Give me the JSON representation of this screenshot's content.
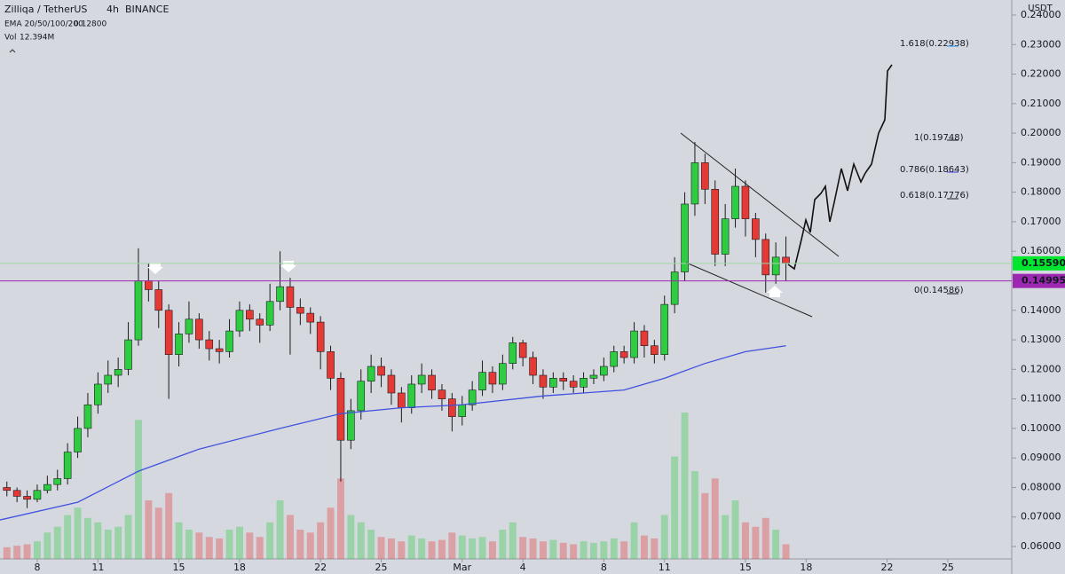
{
  "chart_data": {
    "type": "candlestick",
    "symbol": "Zilliqa / TetherUS",
    "interval": "4h",
    "exchange": "BINANCE",
    "ema_label": "EMA 20/50/100/200",
    "ema_value": "0.12800",
    "volume_label": "Vol",
    "volume_value": "12.394M",
    "currency": "USDT",
    "xlim": [
      6.16,
      56.16
    ],
    "ylim": [
      0.0558,
      0.2451
    ],
    "xticks": [
      8,
      11,
      15,
      18,
      22,
      25,
      {
        "value": 29,
        "label": "Mar"
      },
      {
        "value": 32,
        "label": "4"
      },
      {
        "value": 36,
        "label": "8"
      },
      {
        "value": 39,
        "label": "11"
      },
      {
        "value": 43,
        "label": "15"
      },
      {
        "value": 46,
        "label": "18"
      },
      {
        "value": 50,
        "label": "22"
      },
      {
        "value": 53,
        "label": "25"
      }
    ],
    "yticks": [
      {
        "value": 0.06,
        "label": "0.06000"
      },
      {
        "value": 0.07,
        "label": "0.07000"
      },
      {
        "value": 0.08,
        "label": "0.08000"
      },
      {
        "value": 0.09,
        "label": "0.09000"
      },
      {
        "value": 0.1,
        "label": "0.10000"
      },
      {
        "value": 0.11,
        "label": "0.11000"
      },
      {
        "value": 0.12,
        "label": "0.12000"
      },
      {
        "value": 0.13,
        "label": "0.13000"
      },
      {
        "value": 0.14,
        "label": "0.14000"
      },
      {
        "value": 0.16,
        "label": "0.16000"
      },
      {
        "value": 0.17,
        "label": "0.17000"
      },
      {
        "value": 0.18,
        "label": "0.18000"
      },
      {
        "value": 0.19,
        "label": "0.19000"
      },
      {
        "value": 0.2,
        "label": "0.20000"
      },
      {
        "value": 0.21,
        "label": "0.21000"
      },
      {
        "value": 0.22,
        "label": "0.22000"
      },
      {
        "value": 0.23,
        "label": "0.23000"
      },
      {
        "value": 0.24,
        "label": "0.24000"
      }
    ],
    "up_color": "#2ecc40",
    "down_color": "#e53935",
    "candles": {
      "x": [
        6.5,
        7,
        7.5,
        8,
        8.5,
        9,
        9.5,
        10,
        10.5,
        11,
        11.5,
        12,
        12.5,
        13,
        13.5,
        14,
        14.5,
        15,
        15.5,
        16,
        16.5,
        17,
        17.5,
        18,
        18.5,
        19,
        19.5,
        20,
        20.5,
        21,
        21.5,
        22,
        22.5,
        23,
        23.5,
        24,
        24.5,
        25,
        25.5,
        26,
        26.5,
        27,
        27.5,
        28,
        28.5,
        29,
        29.5,
        30,
        30.5,
        31,
        31.5,
        32,
        32.5,
        33,
        33.5,
        34,
        34.5,
        35,
        35.5,
        36,
        36.5,
        37,
        37.5,
        38,
        38.5,
        39,
        39.5,
        40,
        40.5,
        41,
        41.5,
        42,
        42.5,
        43,
        43.5,
        44,
        44.5,
        45
      ],
      "open": [
        0.08,
        0.079,
        0.077,
        0.076,
        0.079,
        0.081,
        0.083,
        0.092,
        0.1,
        0.108,
        0.115,
        0.118,
        0.12,
        0.13,
        0.15,
        0.147,
        0.14,
        0.125,
        0.132,
        0.137,
        0.13,
        0.127,
        0.126,
        0.133,
        0.14,
        0.137,
        0.135,
        0.143,
        0.148,
        0.141,
        0.139,
        0.136,
        0.126,
        0.117,
        0.096,
        0.106,
        0.116,
        0.121,
        0.118,
        0.112,
        0.107,
        0.115,
        0.118,
        0.113,
        0.11,
        0.104,
        0.108,
        0.113,
        0.119,
        0.115,
        0.122,
        0.129,
        0.124,
        0.118,
        0.114,
        0.117,
        0.116,
        0.114,
        0.117,
        0.118,
        0.121,
        0.126,
        0.124,
        0.133,
        0.128,
        0.125,
        0.142,
        0.153,
        0.176,
        0.19,
        0.181,
        0.159,
        0.171,
        0.182,
        0.171,
        0.164,
        0.152,
        0.158
      ],
      "high": [
        0.082,
        0.08,
        0.079,
        0.081,
        0.084,
        0.086,
        0.095,
        0.104,
        0.112,
        0.119,
        0.123,
        0.124,
        0.136,
        0.161,
        0.156,
        0.15,
        0.142,
        0.136,
        0.143,
        0.139,
        0.133,
        0.13,
        0.137,
        0.143,
        0.142,
        0.139,
        0.149,
        0.16,
        0.151,
        0.144,
        0.141,
        0.138,
        0.128,
        0.119,
        0.11,
        0.12,
        0.125,
        0.124,
        0.12,
        0.114,
        0.118,
        0.122,
        0.12,
        0.115,
        0.112,
        0.111,
        0.116,
        0.123,
        0.121,
        0.125,
        0.131,
        0.13,
        0.126,
        0.12,
        0.119,
        0.119,
        0.118,
        0.119,
        0.12,
        0.124,
        0.128,
        0.128,
        0.136,
        0.135,
        0.13,
        0.145,
        0.158,
        0.18,
        0.197,
        0.193,
        0.184,
        0.176,
        0.188,
        0.184,
        0.173,
        0.166,
        0.163,
        0.165
      ],
      "low": [
        0.077,
        0.075,
        0.073,
        0.075,
        0.078,
        0.079,
        0.081,
        0.09,
        0.097,
        0.105,
        0.112,
        0.114,
        0.118,
        0.128,
        0.143,
        0.134,
        0.11,
        0.121,
        0.129,
        0.127,
        0.123,
        0.122,
        0.124,
        0.131,
        0.133,
        0.129,
        0.133,
        0.14,
        0.125,
        0.135,
        0.132,
        0.12,
        0.113,
        0.082,
        0.093,
        0.103,
        0.112,
        0.114,
        0.108,
        0.102,
        0.105,
        0.112,
        0.11,
        0.106,
        0.099,
        0.101,
        0.106,
        0.111,
        0.112,
        0.113,
        0.12,
        0.121,
        0.115,
        0.11,
        0.112,
        0.113,
        0.112,
        0.112,
        0.115,
        0.116,
        0.119,
        0.122,
        0.122,
        0.124,
        0.122,
        0.123,
        0.139,
        0.15,
        0.172,
        0.176,
        0.155,
        0.155,
        0.168,
        0.165,
        0.158,
        0.146,
        0.149,
        0.15
      ],
      "close": [
        0.079,
        0.077,
        0.076,
        0.079,
        0.081,
        0.083,
        0.092,
        0.1,
        0.108,
        0.115,
        0.118,
        0.12,
        0.13,
        0.15,
        0.147,
        0.14,
        0.125,
        0.132,
        0.137,
        0.13,
        0.127,
        0.126,
        0.133,
        0.14,
        0.137,
        0.135,
        0.143,
        0.148,
        0.141,
        0.139,
        0.136,
        0.126,
        0.117,
        0.096,
        0.106,
        0.116,
        0.121,
        0.118,
        0.112,
        0.107,
        0.115,
        0.118,
        0.113,
        0.11,
        0.104,
        0.108,
        0.113,
        0.119,
        0.115,
        0.122,
        0.129,
        0.124,
        0.118,
        0.114,
        0.117,
        0.116,
        0.114,
        0.117,
        0.118,
        0.121,
        0.126,
        0.124,
        0.133,
        0.128,
        0.125,
        0.142,
        0.153,
        0.176,
        0.19,
        0.181,
        0.159,
        0.171,
        0.182,
        0.171,
        0.164,
        0.152,
        0.158,
        0.156
      ],
      "volume": [
        8,
        9,
        10,
        12,
        18,
        22,
        30,
        35,
        28,
        25,
        20,
        22,
        30,
        95,
        40,
        35,
        45,
        25,
        20,
        18,
        15,
        14,
        20,
        22,
        18,
        15,
        25,
        40,
        30,
        20,
        18,
        25,
        35,
        55,
        30,
        25,
        20,
        15,
        14,
        12,
        16,
        14,
        12,
        13,
        18,
        16,
        14,
        15,
        12,
        20,
        25,
        15,
        14,
        12,
        13,
        11,
        10,
        12,
        11,
        12,
        14,
        12,
        25,
        16,
        14,
        30,
        70,
        100,
        60,
        45,
        55,
        30,
        40,
        25,
        22,
        28,
        20,
        10
      ]
    },
    "ema": {
      "color": "#3f51e0",
      "x": [
        6.16,
        10,
        13,
        16,
        20,
        23,
        26,
        29,
        33,
        37,
        39,
        41,
        43,
        45
      ],
      "values": [
        0.069,
        0.075,
        0.0855,
        0.093,
        0.1,
        0.105,
        0.107,
        0.108,
        0.111,
        0.113,
        0.117,
        0.122,
        0.126,
        0.128
      ]
    },
    "price_lines": [
      {
        "value": 0.1559,
        "label": "0.15590",
        "color": "#00e62e",
        "line_color": "#a5d6a7"
      },
      {
        "value": 0.14995,
        "label": "0.14995",
        "color": "#9c27b0",
        "line_color": "#9c27b0"
      }
    ],
    "fib_levels": [
      {
        "label": "1.618(0.22938)",
        "color": "#2196f3"
      },
      {
        "label": "1(0.19748)",
        "color": "#131722"
      },
      {
        "label": "0.786(0.18643)",
        "color": "#3f3fd0"
      },
      {
        "label": "0.618(0.17776)",
        "color": "#131722"
      },
      {
        "label": "0(0.14586)",
        "color": "#131722"
      }
    ]
  }
}
